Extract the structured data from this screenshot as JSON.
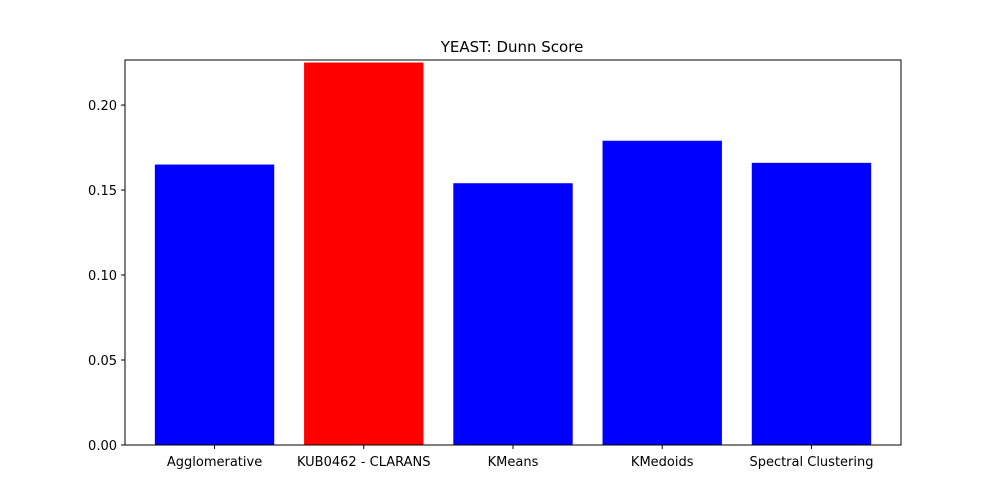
{
  "chart_data": {
    "type": "bar",
    "title": "YEAST: Dunn Score",
    "xlabel": "",
    "ylabel": "",
    "categories": [
      "Agglomerative",
      "KUB0462 - CLARANS",
      "KMeans",
      "KMedoids",
      "Spectral Clustering"
    ],
    "values": [
      0.165,
      0.225,
      0.154,
      0.179,
      0.166
    ],
    "colors": [
      "#0000ff",
      "#ff0000",
      "#0000ff",
      "#0000ff",
      "#0000ff"
    ],
    "ylim": [
      0,
      0.2265
    ],
    "yticks": [
      0.0,
      0.05,
      0.1,
      0.15,
      0.2
    ],
    "ytick_labels": [
      "0.00",
      "0.05",
      "0.10",
      "0.15",
      "0.20"
    ],
    "grid": false,
    "legend": "none"
  }
}
